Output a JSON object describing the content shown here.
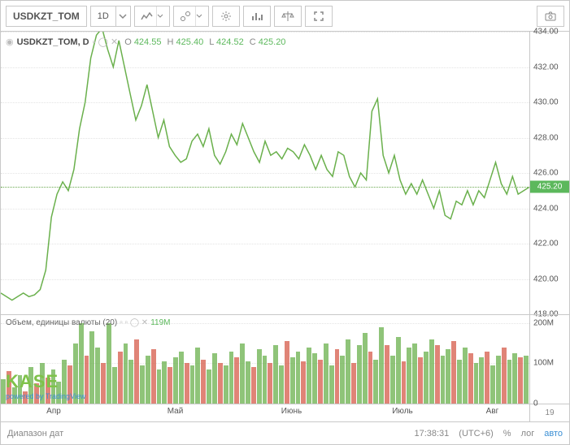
{
  "symbol": "USDKZT_TOM",
  "timeframe": "1D",
  "legend": {
    "title": "USDKZT_TOM, D",
    "ohlc": {
      "O": "424.55",
      "H": "425.40",
      "L": "424.52",
      "C": "425.20"
    }
  },
  "price_chart": {
    "type": "line",
    "ylim": [
      418,
      434
    ],
    "ytick_step": 2,
    "line_color": "#6ab04c",
    "line_width": 1.5,
    "grid_color": "#e4e4e4",
    "current_price": 425.2,
    "current_price_bg": "#5cb85c",
    "data": [
      419.2,
      419.0,
      418.8,
      419.0,
      419.2,
      419.0,
      419.1,
      419.4,
      420.5,
      423.5,
      424.8,
      425.5,
      425.0,
      426.2,
      428.5,
      430.0,
      432.5,
      433.8,
      434.2,
      433.0,
      432.0,
      433.5,
      432.0,
      430.5,
      429.0,
      429.8,
      431.0,
      429.5,
      428.0,
      429.0,
      427.5,
      427.0,
      426.6,
      426.8,
      427.8,
      428.2,
      427.5,
      428.5,
      427.0,
      426.5,
      427.2,
      428.2,
      427.6,
      428.8,
      428.0,
      427.2,
      426.6,
      427.8,
      427.0,
      427.2,
      426.8,
      427.4,
      427.2,
      426.8,
      427.6,
      427.0,
      426.2,
      427.0,
      426.2,
      425.8,
      427.2,
      427.0,
      425.8,
      425.2,
      426.0,
      425.6,
      429.5,
      430.2,
      427.0,
      426.0,
      427.0,
      425.6,
      424.8,
      425.4,
      424.8,
      425.6,
      424.8,
      424.0,
      425.0,
      423.6,
      423.4,
      424.4,
      424.2,
      425.0,
      424.2,
      425.0,
      424.6,
      425.6,
      426.6,
      425.4,
      424.8,
      425.8,
      424.8,
      425.0,
      425.2
    ]
  },
  "volume_chart": {
    "type": "bar",
    "title": "Объем, единицы валюты (20)",
    "value_label": "119M",
    "ylim": [
      0,
      220
    ],
    "yticks": [
      0,
      100,
      200
    ],
    "up_color": "#6ab04c",
    "down_color": "#d65b4a",
    "bars": [
      {
        "v": 60,
        "u": 1
      },
      {
        "v": 80,
        "u": 0
      },
      {
        "v": 40,
        "u": 1
      },
      {
        "v": 70,
        "u": 1
      },
      {
        "v": 30,
        "u": 0
      },
      {
        "v": 90,
        "u": 1
      },
      {
        "v": 50,
        "u": 0
      },
      {
        "v": 100,
        "u": 1
      },
      {
        "v": 65,
        "u": 0
      },
      {
        "v": 85,
        "u": 1
      },
      {
        "v": 55,
        "u": 1
      },
      {
        "v": 110,
        "u": 1
      },
      {
        "v": 95,
        "u": 0
      },
      {
        "v": 150,
        "u": 1
      },
      {
        "v": 200,
        "u": 1
      },
      {
        "v": 120,
        "u": 0
      },
      {
        "v": 180,
        "u": 1
      },
      {
        "v": 140,
        "u": 1
      },
      {
        "v": 100,
        "u": 0
      },
      {
        "v": 200,
        "u": 1
      },
      {
        "v": 90,
        "u": 1
      },
      {
        "v": 130,
        "u": 0
      },
      {
        "v": 150,
        "u": 1
      },
      {
        "v": 110,
        "u": 1
      },
      {
        "v": 160,
        "u": 0
      },
      {
        "v": 95,
        "u": 1
      },
      {
        "v": 120,
        "u": 1
      },
      {
        "v": 135,
        "u": 0
      },
      {
        "v": 85,
        "u": 1
      },
      {
        "v": 105,
        "u": 1
      },
      {
        "v": 90,
        "u": 0
      },
      {
        "v": 115,
        "u": 1
      },
      {
        "v": 130,
        "u": 1
      },
      {
        "v": 100,
        "u": 0
      },
      {
        "v": 95,
        "u": 1
      },
      {
        "v": 140,
        "u": 1
      },
      {
        "v": 110,
        "u": 0
      },
      {
        "v": 85,
        "u": 1
      },
      {
        "v": 125,
        "u": 1
      },
      {
        "v": 100,
        "u": 0
      },
      {
        "v": 95,
        "u": 1
      },
      {
        "v": 130,
        "u": 1
      },
      {
        "v": 115,
        "u": 0
      },
      {
        "v": 150,
        "u": 1
      },
      {
        "v": 105,
        "u": 1
      },
      {
        "v": 90,
        "u": 0
      },
      {
        "v": 135,
        "u": 1
      },
      {
        "v": 120,
        "u": 1
      },
      {
        "v": 100,
        "u": 0
      },
      {
        "v": 145,
        "u": 1
      },
      {
        "v": 95,
        "u": 1
      },
      {
        "v": 155,
        "u": 0
      },
      {
        "v": 115,
        "u": 1
      },
      {
        "v": 130,
        "u": 1
      },
      {
        "v": 105,
        "u": 0
      },
      {
        "v": 140,
        "u": 1
      },
      {
        "v": 125,
        "u": 1
      },
      {
        "v": 110,
        "u": 0
      },
      {
        "v": 150,
        "u": 1
      },
      {
        "v": 95,
        "u": 1
      },
      {
        "v": 135,
        "u": 0
      },
      {
        "v": 120,
        "u": 1
      },
      {
        "v": 160,
        "u": 1
      },
      {
        "v": 100,
        "u": 0
      },
      {
        "v": 145,
        "u": 1
      },
      {
        "v": 175,
        "u": 1
      },
      {
        "v": 130,
        "u": 0
      },
      {
        "v": 110,
        "u": 1
      },
      {
        "v": 190,
        "u": 1
      },
      {
        "v": 145,
        "u": 0
      },
      {
        "v": 120,
        "u": 1
      },
      {
        "v": 165,
        "u": 1
      },
      {
        "v": 105,
        "u": 0
      },
      {
        "v": 140,
        "u": 1
      },
      {
        "v": 150,
        "u": 1
      },
      {
        "v": 115,
        "u": 0
      },
      {
        "v": 130,
        "u": 1
      },
      {
        "v": 160,
        "u": 1
      },
      {
        "v": 145,
        "u": 0
      },
      {
        "v": 120,
        "u": 1
      },
      {
        "v": 135,
        "u": 1
      },
      {
        "v": 155,
        "u": 0
      },
      {
        "v": 110,
        "u": 1
      },
      {
        "v": 140,
        "u": 1
      },
      {
        "v": 125,
        "u": 0
      },
      {
        "v": 100,
        "u": 1
      },
      {
        "v": 115,
        "u": 1
      },
      {
        "v": 130,
        "u": 0
      },
      {
        "v": 95,
        "u": 1
      },
      {
        "v": 120,
        "u": 1
      },
      {
        "v": 140,
        "u": 0
      },
      {
        "v": 110,
        "u": 1
      },
      {
        "v": 125,
        "u": 1
      },
      {
        "v": 115,
        "u": 0
      },
      {
        "v": 119,
        "u": 1
      }
    ]
  },
  "xaxis": {
    "ticks": [
      {
        "pos": 0.1,
        "label": "Апр"
      },
      {
        "pos": 0.33,
        "label": "Май"
      },
      {
        "pos": 0.55,
        "label": "Июнь"
      },
      {
        "pos": 0.76,
        "label": "Июль"
      },
      {
        "pos": 0.93,
        "label": "Авг"
      }
    ],
    "right_label": "19"
  },
  "footer": {
    "date_range": "Диапазон дат",
    "time": "17:38:31",
    "tz": "(UTC+6)",
    "pct": "%",
    "log": "лог",
    "auto": "авто"
  },
  "watermark": {
    "line1": "KASE",
    "line2": "powered by TradingView"
  },
  "colors": {
    "border": "#c8c8c8",
    "text": "#555555"
  }
}
